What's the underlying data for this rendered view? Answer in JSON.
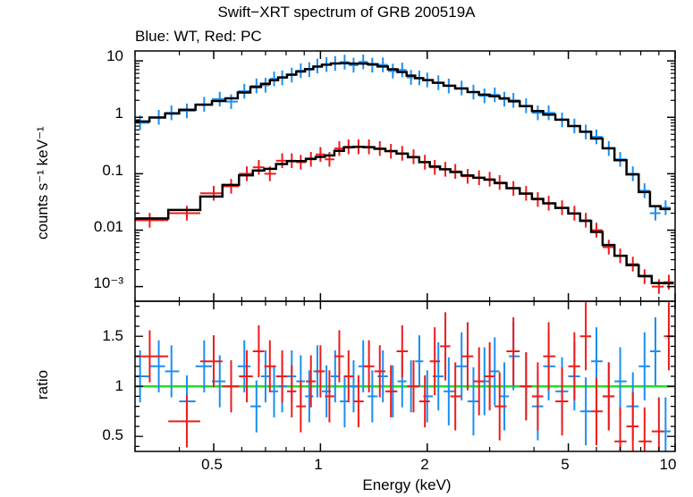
{
  "chart_data": [
    {
      "type": "scatter",
      "panel": "spectrum",
      "title": "Swift−XRT spectrum of GRB 200519A",
      "subtitle": "Blue: WT, Red: PC",
      "xlabel": "",
      "ylabel": "counts s⁻¹ keV⁻¹",
      "xscale": "log",
      "yscale": "log",
      "xlim": [
        0.3,
        10
      ],
      "ylim": [
        0.00055,
        15
      ],
      "y_ticks": [
        "10",
        "1",
        "0.1",
        "0.01",
        "10⁻³"
      ],
      "series": [
        {
          "name": "WT",
          "color": "#1c8ef0",
          "x": [
            0.31,
            0.35,
            0.38,
            0.42,
            0.47,
            0.52,
            0.56,
            0.61,
            0.66,
            0.7,
            0.74,
            0.78,
            0.83,
            0.88,
            0.93,
            0.98,
            1.04,
            1.1,
            1.17,
            1.24,
            1.32,
            1.4,
            1.5,
            1.6,
            1.7,
            1.8,
            1.9,
            2.0,
            2.15,
            2.3,
            2.5,
            2.7,
            2.9,
            3.1,
            3.3,
            3.5,
            3.8,
            4.1,
            4.4,
            4.8,
            5.2,
            5.6,
            6.0,
            6.5,
            7.0,
            7.6,
            8.2,
            8.8,
            9.4
          ],
          "y": [
            0.8,
            1.0,
            1.2,
            1.3,
            1.7,
            2.1,
            1.9,
            2.9,
            3.6,
            3.7,
            4.8,
            5.0,
            5.6,
            6.7,
            7.0,
            8.1,
            8.6,
            9.0,
            9.5,
            8.4,
            9.6,
            8.4,
            8.5,
            6.6,
            6.9,
            5.1,
            5.0,
            4.6,
            4.1,
            3.6,
            3.3,
            2.8,
            2.4,
            2.5,
            2.1,
            2.0,
            1.6,
            1.2,
            1.2,
            0.9,
            0.7,
            0.55,
            0.45,
            0.28,
            0.18,
            0.1,
            0.05,
            0.02,
            0.025
          ]
        },
        {
          "name": "PC",
          "color": "#ee1c1c",
          "x": [
            0.33,
            0.42,
            0.5,
            0.56,
            0.62,
            0.67,
            0.72,
            0.78,
            0.83,
            0.88,
            0.94,
            1.0,
            1.06,
            1.13,
            1.2,
            1.28,
            1.37,
            1.47,
            1.58,
            1.7,
            1.83,
            1.97,
            2.1,
            2.25,
            2.4,
            2.6,
            2.8,
            3.0,
            3.2,
            3.5,
            3.8,
            4.1,
            4.4,
            4.8,
            5.2,
            5.6,
            6.0,
            6.5,
            7.0,
            7.6,
            8.2,
            9.0,
            9.6
          ],
          "y": [
            0.015,
            0.02,
            0.045,
            0.06,
            0.1,
            0.13,
            0.1,
            0.17,
            0.17,
            0.16,
            0.18,
            0.22,
            0.18,
            0.28,
            0.3,
            0.3,
            0.3,
            0.28,
            0.25,
            0.23,
            0.2,
            0.16,
            0.13,
            0.12,
            0.11,
            0.09,
            0.085,
            0.08,
            0.07,
            0.055,
            0.045,
            0.035,
            0.03,
            0.025,
            0.02,
            0.015,
            0.01,
            0.005,
            0.0035,
            0.0025,
            0.0015,
            0.001,
            0.0012
          ]
        }
      ],
      "model_color": "#000000"
    },
    {
      "type": "scatter",
      "panel": "ratio",
      "xlabel": "Energy (keV)",
      "ylabel": "ratio",
      "xscale": "log",
      "xlim": [
        0.3,
        10
      ],
      "ylim": [
        0.35,
        1.85
      ],
      "x_ticks": [
        0.5,
        1,
        2,
        5,
        10
      ],
      "x_tick_labels": [
        "0.5",
        "1",
        "2",
        "5",
        "10"
      ],
      "y_ticks": [
        "0.5",
        "1",
        "1.5"
      ],
      "reference_line": 1.0,
      "reference_color": "#22dd22",
      "series": [
        {
          "name": "WT",
          "color": "#1c8ef0",
          "x": [
            0.31,
            0.35,
            0.38,
            0.42,
            0.47,
            0.52,
            0.56,
            0.61,
            0.66,
            0.7,
            0.74,
            0.78,
            0.83,
            0.88,
            0.93,
            0.98,
            1.04,
            1.1,
            1.17,
            1.24,
            1.32,
            1.4,
            1.5,
            1.6,
            1.7,
            1.8,
            1.9,
            2.0,
            2.15,
            2.3,
            2.5,
            2.7,
            2.9,
            3.1,
            3.3,
            3.5,
            3.8,
            4.1,
            4.4,
            4.8,
            5.2,
            5.6,
            6.0,
            6.5,
            7.0,
            7.6,
            8.2,
            8.8,
            9.4
          ],
          "y": [
            1.1,
            1.2,
            1.15,
            0.85,
            1.2,
            1.05,
            1.0,
            1.2,
            0.8,
            1.1,
            0.95,
            1.0,
            1.1,
            1.05,
            0.9,
            1.15,
            0.95,
            1.1,
            0.85,
            1.0,
            1.2,
            0.9,
            1.1,
            0.95,
            1.05,
            1.0,
            1.25,
            0.9,
            1.1,
            0.95,
            1.2,
            0.85,
            1.05,
            1.15,
            0.9,
            1.3,
            1.0,
            0.8,
            1.2,
            0.95,
            1.1,
            0.75,
            1.25,
            0.9,
            1.05,
            0.8,
            1.2,
            1.35,
            0.55
          ]
        },
        {
          "name": "PC",
          "color": "#ee1c1c",
          "x": [
            0.33,
            0.42,
            0.5,
            0.56,
            0.62,
            0.67,
            0.72,
            0.78,
            0.83,
            0.88,
            0.94,
            1.0,
            1.06,
            1.13,
            1.2,
            1.28,
            1.37,
            1.47,
            1.58,
            1.7,
            1.83,
            1.97,
            2.1,
            2.25,
            2.4,
            2.6,
            2.8,
            3.0,
            3.2,
            3.5,
            3.8,
            4.1,
            4.4,
            4.8,
            5.2,
            5.6,
            6.0,
            6.5,
            7.0,
            7.6,
            8.2,
            9.0,
            9.6
          ],
          "y": [
            1.3,
            0.65,
            1.25,
            1.0,
            1.1,
            1.35,
            1.2,
            1.1,
            0.95,
            0.8,
            1.05,
            1.15,
            0.9,
            1.3,
            1.1,
            0.85,
            1.2,
            1.15,
            0.95,
            1.35,
            1.0,
            0.85,
            1.25,
            1.4,
            0.9,
            1.3,
            1.05,
            1.1,
            0.8,
            1.35,
            1.0,
            0.9,
            1.3,
            0.85,
            1.2,
            1.5,
            0.75,
            0.9,
            0.45,
            0.6,
            0.45,
            0.55,
            1.5
          ]
        }
      ]
    }
  ]
}
